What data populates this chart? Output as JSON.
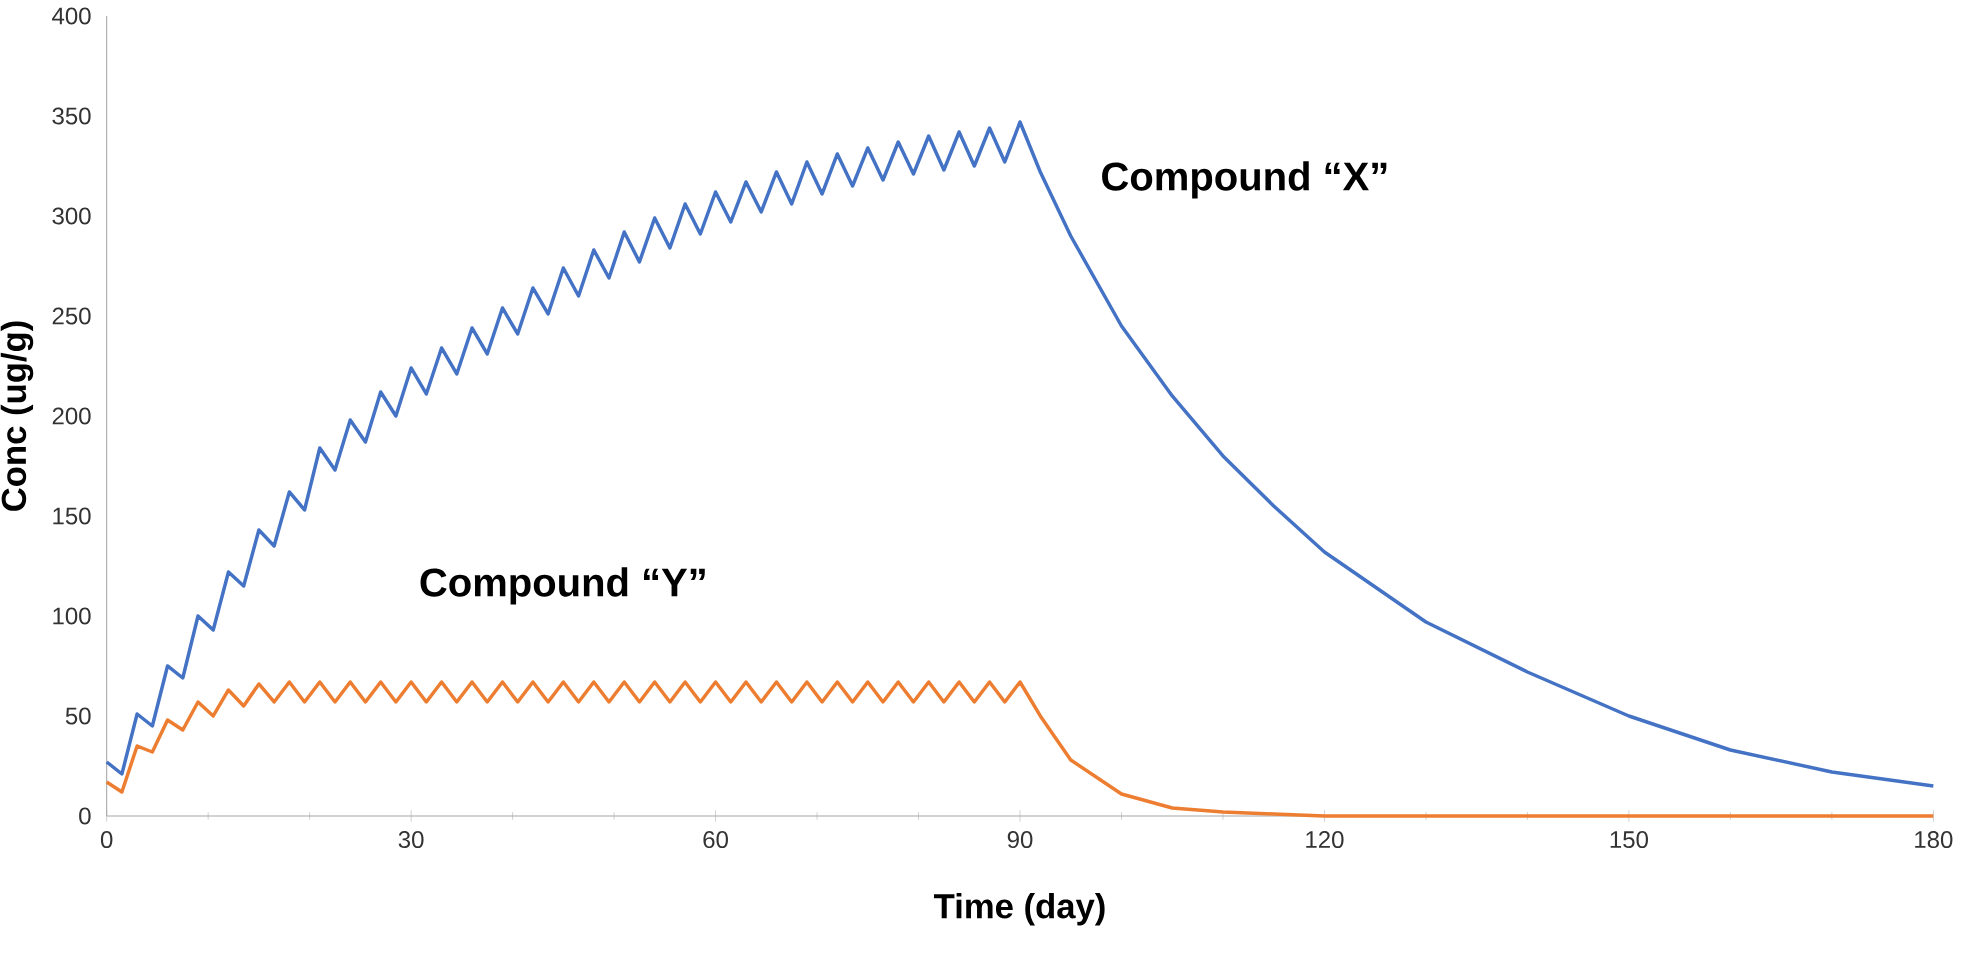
{
  "chart_data": {
    "type": "line",
    "xlabel": "Time (day)",
    "ylabel": "Conc (ug/g)",
    "xlim": [
      0,
      180
    ],
    "xticks": [
      0,
      30,
      60,
      90,
      120,
      150,
      180
    ],
    "ylim": [
      0,
      400
    ],
    "yticks": [
      0,
      50,
      100,
      150,
      200,
      250,
      300,
      350,
      400
    ],
    "grid": false,
    "legend": false,
    "marker": "none",
    "series": [
      {
        "name": "Compound “X”",
        "color": "#4472c4",
        "x": [
          0,
          1.5,
          3,
          4.5,
          6,
          7.5,
          9,
          10.5,
          12,
          13.5,
          15,
          16.5,
          18,
          19.5,
          21,
          22.5,
          24,
          25.5,
          27,
          28.5,
          30,
          31.5,
          33,
          34.5,
          36,
          37.5,
          39,
          40.5,
          42,
          43.5,
          45,
          46.5,
          48,
          49.5,
          51,
          52.5,
          54,
          55.5,
          57,
          58.5,
          60,
          61.5,
          63,
          64.5,
          66,
          67.5,
          69,
          70.5,
          72,
          73.5,
          75,
          76.5,
          78,
          79.5,
          81,
          82.5,
          84,
          85.5,
          87,
          88.5,
          90,
          92,
          95,
          100,
          105,
          110,
          115,
          120,
          130,
          140,
          150,
          160,
          170,
          180
        ],
        "values": [
          27,
          21,
          51,
          45,
          75,
          69,
          100,
          93,
          122,
          115,
          143,
          135,
          162,
          153,
          184,
          173,
          198,
          187,
          212,
          200,
          224,
          211,
          234,
          221,
          244,
          231,
          254,
          241,
          264,
          251,
          274,
          260,
          283,
          269,
          292,
          277,
          299,
          284,
          306,
          291,
          312,
          297,
          317,
          302,
          322,
          306,
          327,
          311,
          331,
          315,
          334,
          318,
          337,
          321,
          340,
          323,
          342,
          325,
          344,
          327,
          347,
          322,
          290,
          245,
          210,
          180,
          155,
          132,
          97,
          72,
          50,
          33,
          22,
          15
        ]
      },
      {
        "name": "Compound “Y”",
        "color": "#ed7d31",
        "x": [
          0,
          1.5,
          3,
          4.5,
          6,
          7.5,
          9,
          10.5,
          12,
          13.5,
          15,
          16.5,
          18,
          19.5,
          21,
          22.5,
          24,
          25.5,
          27,
          28.5,
          30,
          31.5,
          33,
          34.5,
          36,
          37.5,
          39,
          40.5,
          42,
          43.5,
          45,
          46.5,
          48,
          49.5,
          51,
          52.5,
          54,
          55.5,
          57,
          58.5,
          60,
          61.5,
          63,
          64.5,
          66,
          67.5,
          69,
          70.5,
          72,
          73.5,
          75,
          76.5,
          78,
          79.5,
          81,
          82.5,
          84,
          85.5,
          87,
          88.5,
          90,
          92,
          95,
          100,
          105,
          110,
          115,
          120,
          150,
          180
        ],
        "values": [
          17,
          12,
          35,
          32,
          48,
          43,
          57,
          50,
          63,
          55,
          66,
          57,
          67,
          57,
          67,
          57,
          67,
          57,
          67,
          57,
          67,
          57,
          67,
          57,
          67,
          57,
          67,
          57,
          67,
          57,
          67,
          57,
          67,
          57,
          67,
          57,
          67,
          57,
          67,
          57,
          67,
          57,
          67,
          57,
          67,
          57,
          67,
          57,
          67,
          57,
          67,
          57,
          67,
          57,
          67,
          57,
          67,
          57,
          67,
          57,
          67,
          50,
          28,
          11,
          4,
          2,
          1,
          0,
          0,
          0
        ]
      }
    ]
  }
}
